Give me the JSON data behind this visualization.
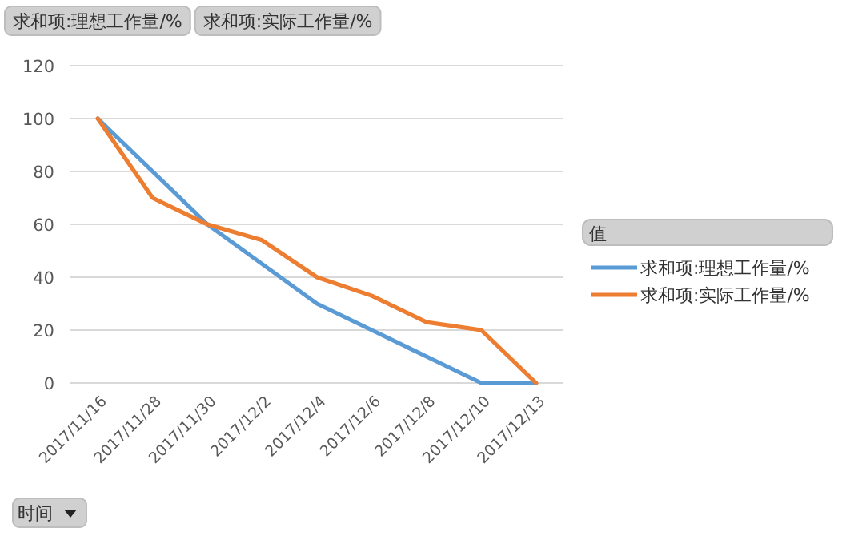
{
  "chart_data": {
    "type": "line",
    "categories": [
      "2017/11/16",
      "2017/11/28",
      "2017/11/30",
      "2017/12/2",
      "2017/12/4",
      "2017/12/6",
      "2017/12/8",
      "2017/12/10",
      "2017/12/13"
    ],
    "series": [
      {
        "name": "求和项:理想工作量/%",
        "color": "#5b9bd5",
        "values": [
          100,
          80,
          60,
          45,
          30,
          20,
          10,
          0,
          0
        ]
      },
      {
        "name": "求和项:实际工作量/%",
        "color": "#ed7d31",
        "values": [
          100,
          70,
          60,
          54,
          40,
          33,
          23,
          20,
          0
        ]
      }
    ],
    "ylim": [
      0,
      120
    ],
    "yticks": [
      0,
      20,
      40,
      60,
      80,
      100,
      120
    ],
    "grid": "y",
    "xlabel": "时间",
    "legend_title": "值",
    "legend": "right",
    "marker": "none",
    "line_style": "solid",
    "annotations": [
      "求和项:理想工作量/%",
      "求和项:实际工作量/%"
    ]
  }
}
